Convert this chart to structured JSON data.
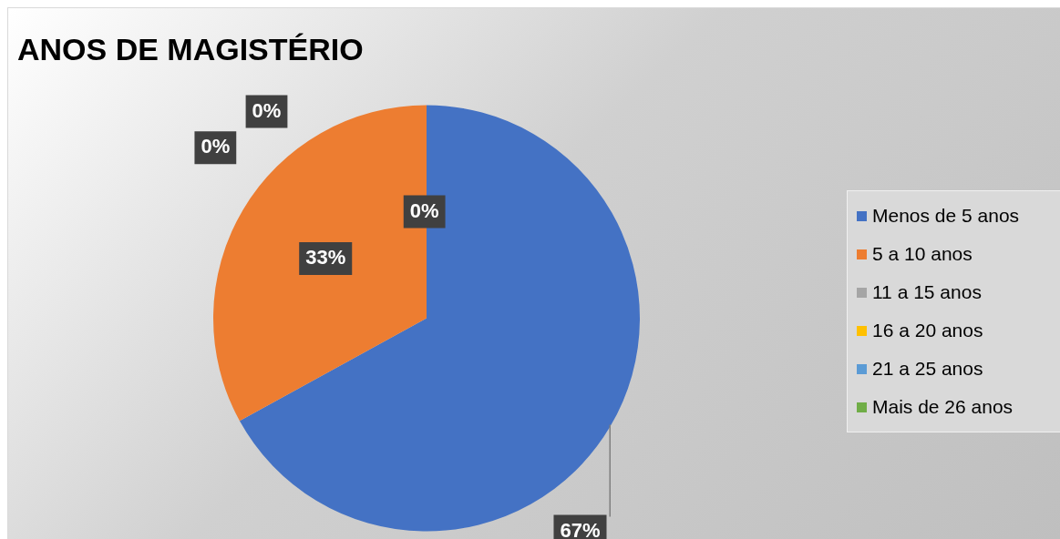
{
  "chart_data": {
    "type": "pie",
    "title": "ANOS DE MAGISTÉRIO",
    "categories": [
      "Menos de 5 anos",
      "5 a 10 anos",
      "11 a 15 anos",
      "16 a 20 anos",
      "21 a 25 anos",
      "Mais de 26 anos"
    ],
    "values": [
      67,
      33,
      0,
      0,
      0,
      0
    ],
    "colors": [
      "#4472c4",
      "#ed7d31",
      "#a5a5a5",
      "#ffc000",
      "#5b9bd5",
      "#70ad47"
    ],
    "value_labels": [
      "67%",
      "33%",
      "0%",
      "0%",
      "0%",
      null
    ],
    "legend": "right"
  }
}
